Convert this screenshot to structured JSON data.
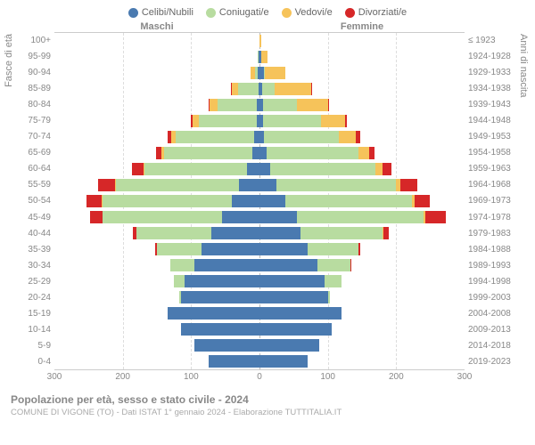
{
  "legend": [
    {
      "label": "Celibi/Nubili",
      "color": "#4a7ab0"
    },
    {
      "label": "Coniugati/e",
      "color": "#b8dca0"
    },
    {
      "label": "Vedovi/e",
      "color": "#f6c35a"
    },
    {
      "label": "Divorziati/e",
      "color": "#d62728"
    }
  ],
  "header": {
    "male": "Maschi",
    "female": "Femmine"
  },
  "y_left_title": "Fasce di età",
  "y_right_title": "Anni di nascita",
  "y_left": [
    "100+",
    "95-99",
    "90-94",
    "85-89",
    "80-84",
    "75-79",
    "70-74",
    "65-69",
    "60-64",
    "55-59",
    "50-54",
    "45-49",
    "40-44",
    "35-39",
    "30-34",
    "25-29",
    "20-24",
    "15-19",
    "10-14",
    "5-9",
    "0-4"
  ],
  "y_right": [
    "≤ 1923",
    "1924-1928",
    "1929-1933",
    "1934-1938",
    "1939-1943",
    "1944-1948",
    "1949-1953",
    "1954-1958",
    "1959-1963",
    "1964-1968",
    "1969-1973",
    "1974-1978",
    "1979-1983",
    "1984-1988",
    "1989-1993",
    "1994-1998",
    "1999-2003",
    "2004-2008",
    "2009-2013",
    "2014-2018",
    "2019-2023"
  ],
  "x_ticks": [
    300,
    200,
    100,
    0,
    100,
    200,
    300
  ],
  "max_val": 300,
  "data": [
    {
      "m": [
        0,
        0,
        0,
        0
      ],
      "f": [
        0,
        0,
        3,
        0
      ]
    },
    {
      "m": [
        1,
        1,
        1,
        0
      ],
      "f": [
        3,
        0,
        9,
        0
      ]
    },
    {
      "m": [
        2,
        5,
        6,
        0
      ],
      "f": [
        6,
        2,
        30,
        0
      ]
    },
    {
      "m": [
        1,
        30,
        10,
        1
      ],
      "f": [
        4,
        18,
        54,
        1
      ]
    },
    {
      "m": [
        4,
        57,
        12,
        1
      ],
      "f": [
        5,
        50,
        45,
        2
      ]
    },
    {
      "m": [
        4,
        85,
        9,
        2
      ],
      "f": [
        5,
        85,
        35,
        3
      ]
    },
    {
      "m": [
        8,
        115,
        6,
        6
      ],
      "f": [
        6,
        110,
        25,
        6
      ]
    },
    {
      "m": [
        10,
        130,
        4,
        8
      ],
      "f": [
        10,
        135,
        15,
        8
      ]
    },
    {
      "m": [
        18,
        150,
        2,
        16
      ],
      "f": [
        15,
        155,
        10,
        13
      ]
    },
    {
      "m": [
        30,
        180,
        1,
        25
      ],
      "f": [
        25,
        175,
        6,
        25
      ]
    },
    {
      "m": [
        40,
        190,
        1,
        22
      ],
      "f": [
        38,
        185,
        4,
        22
      ]
    },
    {
      "m": [
        55,
        175,
        0,
        18
      ],
      "f": [
        55,
        185,
        3,
        30
      ]
    },
    {
      "m": [
        70,
        110,
        0,
        5
      ],
      "f": [
        60,
        120,
        1,
        8
      ]
    },
    {
      "m": [
        85,
        65,
        0,
        2
      ],
      "f": [
        70,
        75,
        0,
        3
      ]
    },
    {
      "m": [
        95,
        35,
        0,
        1
      ],
      "f": [
        85,
        48,
        0,
        1
      ]
    },
    {
      "m": [
        110,
        15,
        0,
        0
      ],
      "f": [
        95,
        25,
        0,
        0
      ]
    },
    {
      "m": [
        115,
        2,
        0,
        0
      ],
      "f": [
        100,
        3,
        0,
        0
      ]
    },
    {
      "m": [
        135,
        0,
        0,
        0
      ],
      "f": [
        120,
        0,
        0,
        0
      ]
    },
    {
      "m": [
        115,
        0,
        0,
        0
      ],
      "f": [
        105,
        0,
        0,
        0
      ]
    },
    {
      "m": [
        95,
        0,
        0,
        0
      ],
      "f": [
        88,
        0,
        0,
        0
      ]
    },
    {
      "m": [
        75,
        0,
        0,
        0
      ],
      "f": [
        70,
        0,
        0,
        0
      ]
    }
  ],
  "colors": [
    "#4a7ab0",
    "#b8dca0",
    "#f6c35a",
    "#d62728"
  ],
  "grid_color": "#dddddd",
  "title": "Popolazione per età, sesso e stato civile - 2024",
  "subtitle": "COMUNE DI VIGONE (TO) - Dati ISTAT 1° gennaio 2024 - Elaborazione TUTTITALIA.IT"
}
